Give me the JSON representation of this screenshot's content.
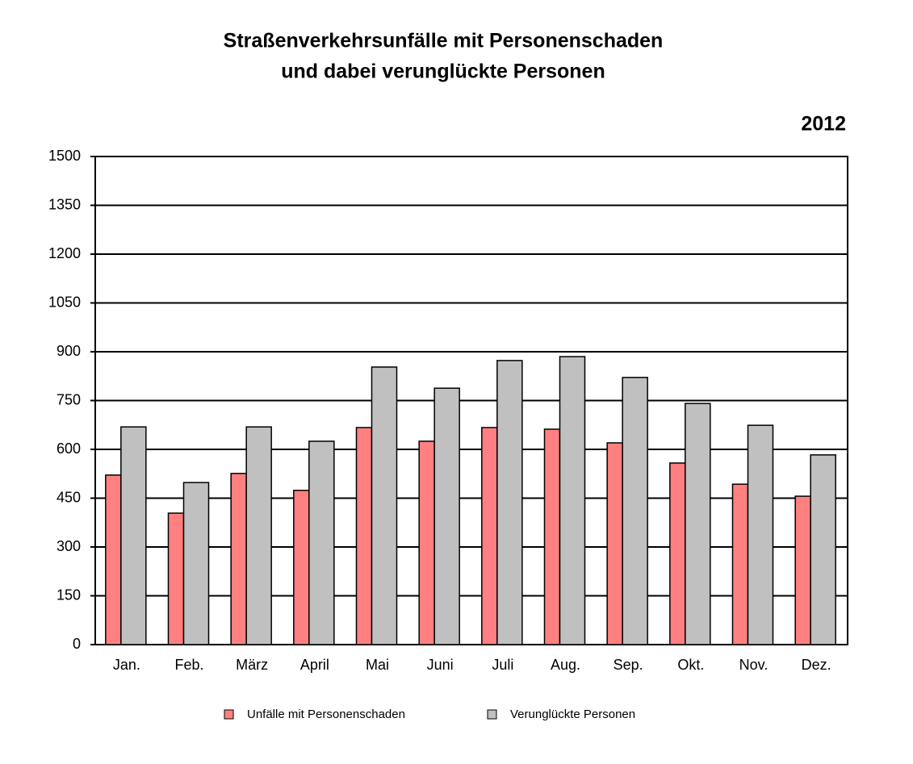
{
  "chart_data": {
    "type": "bar",
    "title": [
      "Straßenverkehrsunfälle mit Personenschaden",
      "und dabei verunglückte Personen"
    ],
    "annotation": "2012",
    "categories": [
      "Jan.",
      "Feb.",
      "März",
      "April",
      "Mai",
      "Juni",
      "Juli",
      "Aug.",
      "Sep.",
      "Okt.",
      "Nov.",
      "Dez."
    ],
    "series": [
      {
        "name": "Unfälle mit Personenschaden",
        "color": "#ff8080",
        "values": [
          521,
          404,
          526,
          474,
          667,
          625,
          667,
          662,
          620,
          558,
          493,
          456
        ]
      },
      {
        "name": "Verunglückte Personen",
        "color": "#c0c0c0",
        "values": [
          669,
          498,
          669,
          625,
          853,
          788,
          873,
          885,
          821,
          741,
          674,
          583
        ]
      }
    ],
    "ylim": [
      0,
      1500
    ],
    "yticks": [
      0,
      150,
      300,
      450,
      600,
      750,
      900,
      1050,
      1200,
      1350,
      1500
    ],
    "grid": true
  }
}
